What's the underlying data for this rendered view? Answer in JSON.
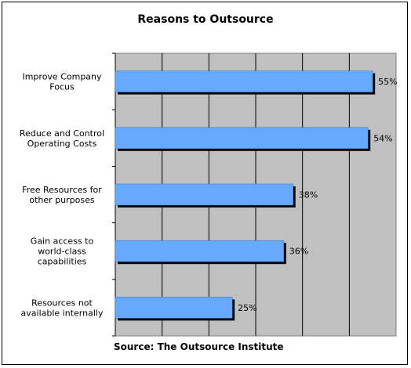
{
  "title": "Reasons to Outsource",
  "source": "Source: The Outsource Institute",
  "colors": {
    "bar": "#66aaff",
    "plot_background": "#c0c0c0",
    "bar_shadow": "#000000"
  },
  "chart_data": {
    "type": "bar",
    "orientation": "horizontal",
    "title": "Reasons to Outsource",
    "categories": [
      [
        "Improve Company",
        "Focus"
      ],
      [
        "Reduce and Control",
        "Operating Costs"
      ],
      [
        "Free Resources for",
        "other purposes"
      ],
      [
        "Gain access to",
        "world-class",
        "capabilities"
      ],
      [
        "Resources not",
        "available internally"
      ]
    ],
    "values": [
      55,
      54,
      38,
      36,
      25
    ],
    "value_labels": [
      "55%",
      "54%",
      "38%",
      "36%",
      "25%"
    ],
    "xlim": [
      0,
      60
    ],
    "grid": true,
    "legend": "none",
    "xlabel": "",
    "ylabel": ""
  }
}
